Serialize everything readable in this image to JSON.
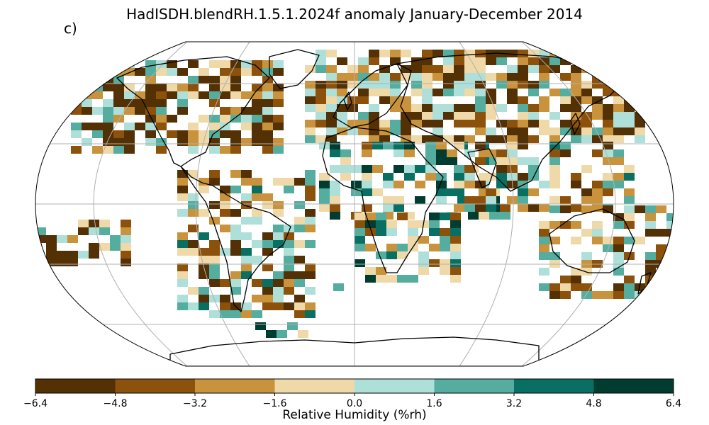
{
  "title": "HadISDH.blendRH.1.5.1.2024f anomaly January-December 2014",
  "panel_label": "c)",
  "colorbar": {
    "label": "Relative Humidity (%rh)",
    "ticks": [
      "−6.4",
      "−4.8",
      "−3.2",
      "−1.6",
      "0.0",
      "1.6",
      "3.2",
      "4.8",
      "6.4"
    ],
    "colors": [
      "#543005",
      "#8c510a",
      "#c8933c",
      "#efd9a8",
      "#aee0d9",
      "#55ad9f",
      "#0a6f63",
      "#003c30"
    ]
  },
  "map": {
    "projection": "Robinson",
    "variable": "relative humidity anomaly",
    "period": "January-December 2014",
    "gridlines": true,
    "land_outline_color": "#000000",
    "missing_color": "#ffffff"
  },
  "chart_data": {
    "type": "heatmap",
    "title": "HadISDH.blendRH.1.5.1.2024f anomaly January-December 2014",
    "colorbar_range": [
      -6.4,
      6.4
    ],
    "colorbar_label": "Relative Humidity (%rh)"
  }
}
